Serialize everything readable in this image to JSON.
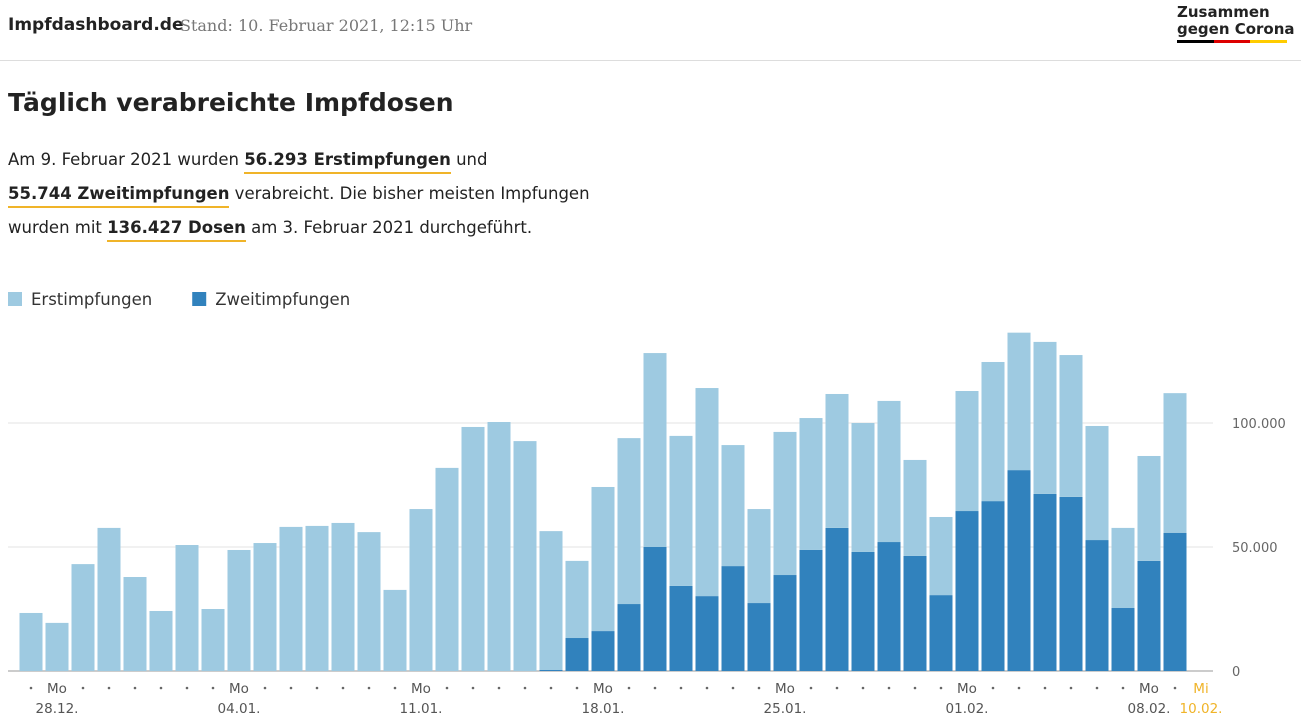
{
  "header": {
    "site": "Impfdashboard.de",
    "stand": "Stand: 10. Februar 2021, 12:15 Uhr",
    "logo": [
      "Zusammen",
      "gegen Corona"
    ]
  },
  "intro": {
    "title": "Täglich verabreichte Impfdosen",
    "lines": [
      [
        {
          "text": "Am 9. Februar 2021 wurden "
        },
        {
          "text": "56.293 Erstimpfungen",
          "strong": true
        },
        {
          "text": " und"
        }
      ],
      [
        {
          "text": "55.744 Zweitimpfungen",
          "strong": true
        },
        {
          "text": " verabreicht. Die bisher meisten Impfungen"
        }
      ],
      [
        {
          "text": "wurden mit "
        },
        {
          "text": "136.427 Dosen",
          "strong": true
        },
        {
          "text": " am 3. Februar 2021 durchgeführt."
        }
      ]
    ]
  },
  "chart_data": {
    "type": "stacked_bar",
    "categories": [
      null,
      "28.12.",
      null,
      null,
      null,
      null,
      null,
      null,
      "04.01.",
      null,
      null,
      null,
      null,
      null,
      null,
      "11.01.",
      null,
      null,
      null,
      null,
      null,
      null,
      "18.01.",
      null,
      null,
      null,
      null,
      null,
      null,
      "25.01.",
      null,
      null,
      null,
      null,
      null,
      null,
      "01.02.",
      null,
      null,
      null,
      null,
      null,
      null,
      "08.02.",
      null,
      "10.02."
    ],
    "weekdays": [
      null,
      "Mo",
      null,
      null,
      null,
      null,
      null,
      null,
      "Mo",
      null,
      null,
      null,
      null,
      null,
      null,
      "Mo",
      null,
      null,
      null,
      null,
      null,
      null,
      "Mo",
      null,
      null,
      null,
      null,
      null,
      null,
      "Mo",
      null,
      null,
      null,
      null,
      null,
      null,
      "Mo",
      null,
      null,
      null,
      null,
      null,
      null,
      "Mo",
      null,
      "Mi"
    ],
    "highlight_color": "#f0b429",
    "series": [
      {
        "name": "Zweitimpfungen",
        "color": "#3182bd",
        "values": [
          0,
          0,
          0,
          0,
          0,
          0,
          0,
          0,
          0,
          0,
          0,
          0,
          0,
          0,
          0,
          0,
          0,
          0,
          0,
          0,
          400,
          13300,
          16100,
          27000,
          50000,
          34300,
          30200,
          42300,
          27400,
          38700,
          48800,
          57700,
          48000,
          52000,
          46400,
          30600,
          64500,
          68500,
          81000,
          71400,
          70200,
          52800,
          25400,
          44400,
          55744,
          null
        ]
      },
      {
        "name": "Erstimpfungen",
        "color": "#9ecae1",
        "values": [
          23400,
          19400,
          43100,
          57700,
          37900,
          24200,
          50800,
          25000,
          48800,
          51600,
          58100,
          58500,
          59700,
          56000,
          32700,
          65300,
          81900,
          98400,
          100400,
          92700,
          56000,
          31100,
          58100,
          66900,
          78200,
          60500,
          83900,
          48800,
          37900,
          57700,
          53200,
          54000,
          52000,
          56900,
          38700,
          31500,
          48400,
          56100,
          55427,
          61300,
          57200,
          46000,
          32300,
          42300,
          56293,
          null
        ]
      }
    ],
    "legend_order": [
      1,
      0
    ],
    "ylim": [
      0,
      150000
    ],
    "yticks": [
      0,
      {
        "value": 50000,
        "label": "50.000"
      },
      {
        "value": 100000,
        "label": "100.000"
      }
    ],
    "grid": true
  }
}
